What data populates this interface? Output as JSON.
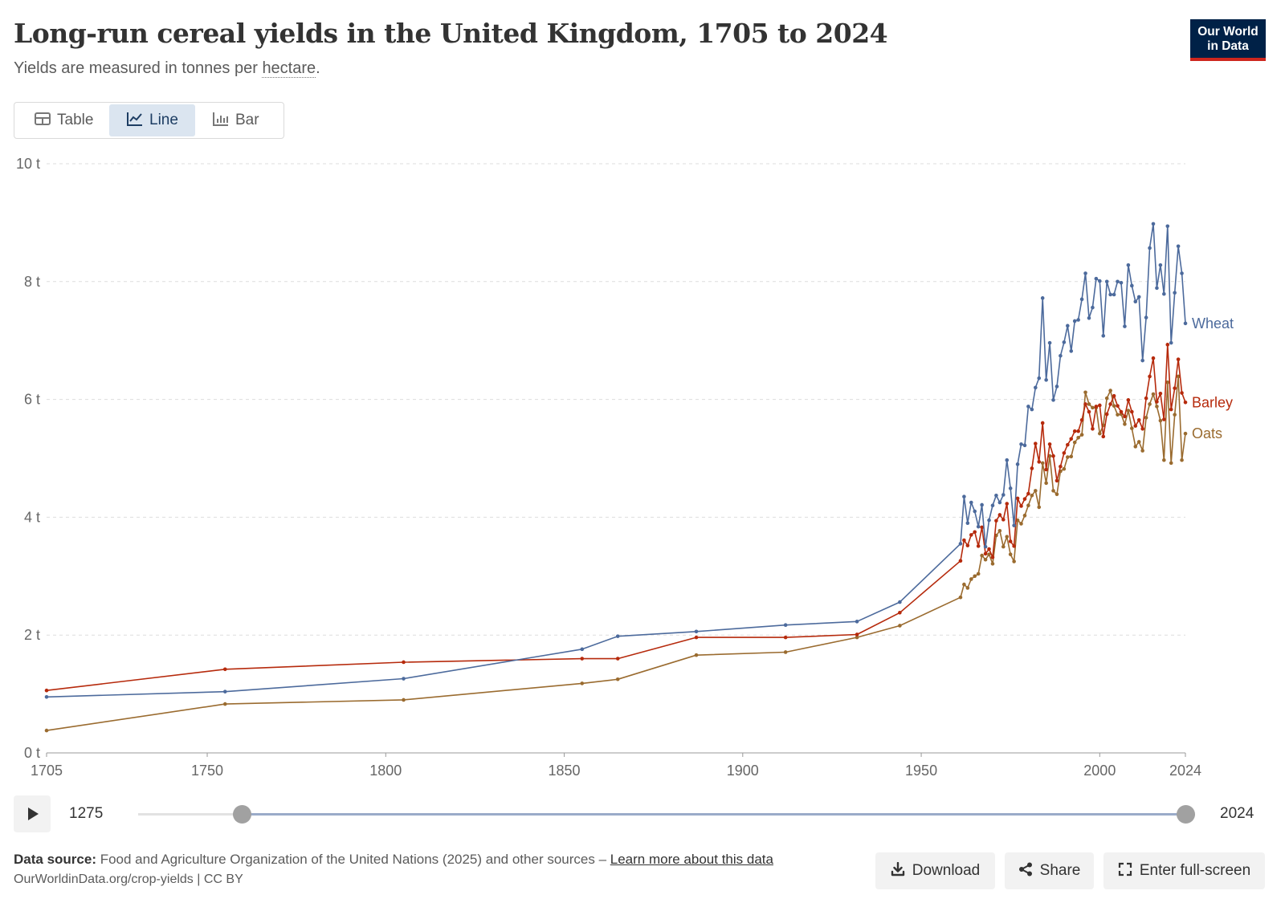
{
  "header": {
    "title": "Long-run cereal yields in the United Kingdom, 1705 to 2024",
    "subtitle_prefix": "Yields are measured in tonnes per ",
    "subtitle_link": "hectare",
    "subtitle_suffix": ".",
    "logo_line1": "Our World",
    "logo_line2": "in Data"
  },
  "tabs": [
    {
      "label": "Table",
      "icon": "table-icon",
      "active": false
    },
    {
      "label": "Line",
      "icon": "line-chart-icon",
      "active": true
    },
    {
      "label": "Bar",
      "icon": "bar-chart-icon",
      "active": false
    }
  ],
  "timeline": {
    "start_label": "1275",
    "end_label": "2024",
    "play_icon": "play-icon"
  },
  "footer": {
    "source_label": "Data source:",
    "source_text": " Food and Agriculture Organization of the United Nations (2025) and other sources – ",
    "source_link": "Learn more about this data",
    "credit": "OurWorldinData.org/crop-yields | CC BY",
    "download_label": "Download",
    "share_label": "Share",
    "fullscreen_label": "Enter full-screen"
  },
  "colors": {
    "wheat": "#4c6a9c",
    "barley": "#b62a0c",
    "oats": "#9a6b2f",
    "grid": "#dddddd",
    "axis": "#999999"
  },
  "chart_data": {
    "type": "line",
    "xlim": [
      1705,
      2024
    ],
    "ylim": [
      0,
      10
    ],
    "y_ticks": [
      0,
      2,
      4,
      6,
      8,
      10
    ],
    "y_tick_labels": [
      "0 t",
      "2 t",
      "4 t",
      "6 t",
      "8 t",
      "10 t"
    ],
    "x_ticks": [
      1705,
      1750,
      1800,
      1850,
      1900,
      1950,
      2000,
      2024
    ],
    "grid": "horizontal dashed",
    "legend": "inline labels at right end of lines",
    "series": [
      {
        "name": "Wheat",
        "x": [
          1705,
          1755,
          1805,
          1855,
          1865,
          1887,
          1912,
          1932,
          1944,
          1961,
          1962,
          1963,
          1964,
          1965,
          1966,
          1967,
          1968,
          1969,
          1970,
          1971,
          1972,
          1973,
          1974,
          1975,
          1976,
          1977,
          1978,
          1979,
          1980,
          1981,
          1982,
          1983,
          1984,
          1985,
          1986,
          1987,
          1988,
          1989,
          1990,
          1991,
          1992,
          1993,
          1994,
          1995,
          1996,
          1997,
          1998,
          1999,
          2000,
          2001,
          2002,
          2003,
          2004,
          2005,
          2006,
          2007,
          2008,
          2009,
          2010,
          2011,
          2012,
          2013,
          2014,
          2015,
          2016,
          2017,
          2018,
          2019,
          2020,
          2021,
          2022,
          2023,
          2024
        ],
        "y": [
          0.95,
          1.04,
          1.26,
          1.76,
          1.98,
          2.06,
          2.17,
          2.23,
          2.56,
          3.55,
          4.35,
          3.9,
          4.25,
          4.1,
          3.84,
          4.21,
          3.5,
          3.95,
          4.2,
          4.37,
          4.25,
          4.38,
          4.97,
          4.49,
          3.86,
          4.9,
          5.24,
          5.22,
          5.88,
          5.83,
          6.2,
          6.36,
          7.72,
          6.33,
          6.96,
          5.99,
          6.22,
          6.74,
          6.97,
          7.25,
          6.82,
          7.33,
          7.35,
          7.7,
          8.14,
          7.38,
          7.56,
          8.05,
          8.01,
          7.08,
          8.0,
          7.78,
          7.78,
          8.0,
          7.98,
          7.24,
          8.28,
          7.93,
          7.66,
          7.74,
          6.66,
          7.39,
          8.57,
          8.98,
          7.89,
          8.28,
          7.79,
          8.94,
          6.96,
          7.81,
          8.6,
          8.14,
          7.29
        ]
      },
      {
        "name": "Barley",
        "x": [
          1705,
          1755,
          1805,
          1855,
          1865,
          1887,
          1912,
          1932,
          1944,
          1961,
          1962,
          1963,
          1964,
          1965,
          1966,
          1967,
          1968,
          1969,
          1970,
          1971,
          1972,
          1973,
          1974,
          1975,
          1976,
          1977,
          1978,
          1979,
          1980,
          1981,
          1982,
          1983,
          1984,
          1985,
          1986,
          1987,
          1988,
          1989,
          1990,
          1991,
          1992,
          1993,
          1994,
          1995,
          1996,
          1997,
          1998,
          1999,
          2000,
          2001,
          2002,
          2003,
          2004,
          2005,
          2006,
          2007,
          2008,
          2009,
          2010,
          2011,
          2012,
          2013,
          2014,
          2015,
          2016,
          2017,
          2018,
          2019,
          2020,
          2021,
          2022,
          2023,
          2024
        ],
        "y": [
          1.06,
          1.42,
          1.54,
          1.6,
          1.6,
          1.96,
          1.96,
          2.01,
          2.38,
          3.26,
          3.61,
          3.52,
          3.7,
          3.75,
          3.51,
          3.83,
          3.38,
          3.46,
          3.32,
          3.94,
          4.04,
          3.96,
          4.23,
          3.59,
          3.51,
          4.32,
          4.19,
          4.31,
          4.4,
          4.83,
          5.25,
          4.94,
          5.6,
          4.81,
          5.24,
          5.04,
          4.62,
          4.86,
          5.09,
          5.23,
          5.33,
          5.46,
          5.46,
          5.65,
          5.92,
          5.79,
          5.5,
          5.88,
          5.9,
          5.37,
          5.75,
          5.92,
          6.06,
          5.89,
          5.79,
          5.71,
          5.99,
          5.79,
          5.55,
          5.65,
          5.5,
          6.02,
          6.39,
          6.7,
          5.96,
          6.1,
          5.66,
          6.93,
          5.83,
          6.19,
          6.68,
          6.11,
          5.95
        ]
      },
      {
        "name": "Oats",
        "x": [
          1705,
          1755,
          1805,
          1855,
          1865,
          1887,
          1912,
          1932,
          1944,
          1961,
          1962,
          1963,
          1964,
          1965,
          1966,
          1967,
          1968,
          1969,
          1970,
          1971,
          1972,
          1973,
          1974,
          1975,
          1976,
          1977,
          1978,
          1979,
          1980,
          1981,
          1982,
          1983,
          1984,
          1985,
          1986,
          1987,
          1988,
          1989,
          1990,
          1991,
          1992,
          1993,
          1994,
          1995,
          1996,
          1997,
          1998,
          1999,
          2000,
          2001,
          2002,
          2003,
          2004,
          2005,
          2006,
          2007,
          2008,
          2009,
          2010,
          2011,
          2012,
          2013,
          2014,
          2015,
          2016,
          2017,
          2018,
          2019,
          2020,
          2021,
          2022,
          2023,
          2024
        ],
        "y": [
          0.38,
          0.83,
          0.9,
          1.18,
          1.25,
          1.66,
          1.71,
          1.96,
          2.16,
          2.64,
          2.86,
          2.8,
          2.95,
          3.0,
          3.04,
          3.35,
          3.28,
          3.37,
          3.21,
          3.69,
          3.77,
          3.5,
          3.67,
          3.37,
          3.25,
          3.95,
          3.89,
          4.03,
          4.2,
          4.37,
          4.45,
          4.17,
          4.92,
          4.58,
          5.04,
          4.45,
          4.39,
          4.78,
          4.82,
          5.02,
          5.03,
          5.27,
          5.35,
          5.4,
          6.12,
          5.92,
          5.86,
          5.86,
          5.42,
          5.56,
          6.02,
          6.15,
          5.89,
          5.74,
          5.75,
          5.58,
          5.81,
          5.51,
          5.2,
          5.28,
          5.13,
          5.69,
          5.92,
          6.09,
          5.88,
          5.64,
          4.97,
          6.29,
          4.92,
          5.74,
          6.39,
          4.97,
          5.42
        ]
      }
    ]
  }
}
